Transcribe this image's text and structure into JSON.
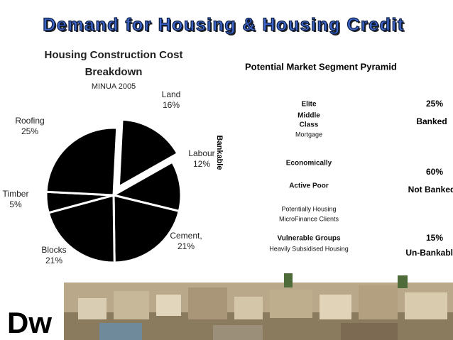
{
  "title": "Demand for Housing & Housing Credit",
  "chart_data": {
    "type": "pie",
    "title": "Housing Construction Cost Breakdown",
    "subtitle": "MINUA 2005",
    "categories": [
      "Land",
      "Labour",
      "Cement,",
      "Blocks",
      "Timber",
      "Roofing"
    ],
    "values": [
      16,
      12,
      21,
      21,
      5,
      25
    ],
    "value_labels": [
      "16%",
      "12%",
      "21%",
      "21%",
      "5%",
      "25%"
    ],
    "color": "#000000",
    "exploded": 0
  },
  "pyramid": {
    "title": "Potential Market Segment Pyramid",
    "side_label": "Bankable",
    "tiers": [
      {
        "lines": [
          "Elite",
          "Middle",
          "Class",
          "Mortgage"
        ],
        "share": "25%",
        "status": "Banked"
      },
      {
        "lines": [
          "Economically",
          "Active Poor",
          "Potentially Housing",
          "MicroFinance Clients"
        ],
        "share": "60%",
        "status": "Not Banked"
      },
      {
        "lines": [
          "Vulnerable Groups",
          "Heavily Subsidised Housing"
        ],
        "share": "15%",
        "status": "Un-Bankable"
      }
    ]
  },
  "logo": "Dw"
}
